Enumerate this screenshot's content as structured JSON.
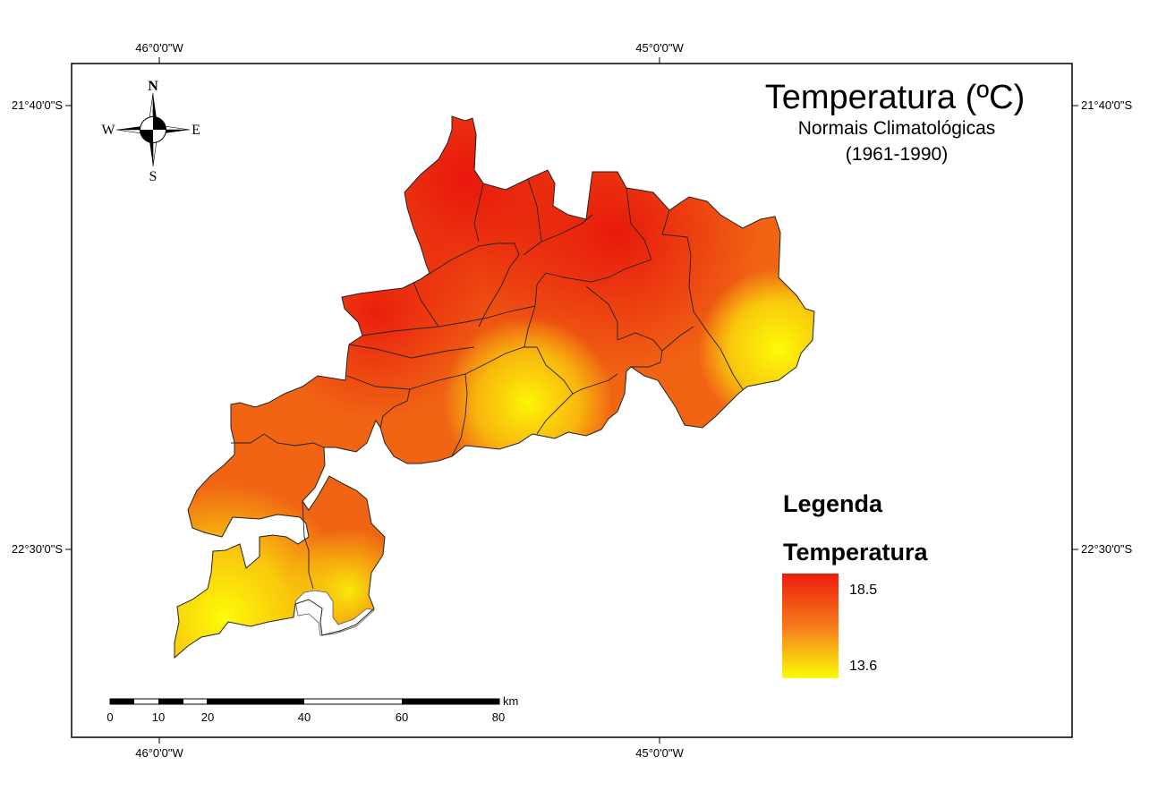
{
  "map": {
    "title": "Temperatura (ºC)",
    "subtitle_line1": "Normais Climatológicas",
    "subtitle_line2": "(1961-1990)"
  },
  "graticule": {
    "lon_left": "46°0'0\"W",
    "lon_right": "45°0'0\"W",
    "lat_top": "21°40'0\"S",
    "lat_bottom": "22°30'0\"S"
  },
  "compass": {
    "north": "N",
    "south": "S",
    "east": "E",
    "west": "W"
  },
  "legend": {
    "heading": "Legenda",
    "layer": "Temperatura",
    "max_label": "18.5",
    "min_label": "13.6",
    "max_value": 18.5,
    "min_value": 13.6,
    "colors": {
      "high": "#ee1c0c",
      "mid": "#f57a1c",
      "low": "#fdfc07"
    }
  },
  "scalebar": {
    "ticks": [
      "0",
      "10",
      "20",
      "40",
      "60",
      "80"
    ],
    "unit": "km"
  }
}
